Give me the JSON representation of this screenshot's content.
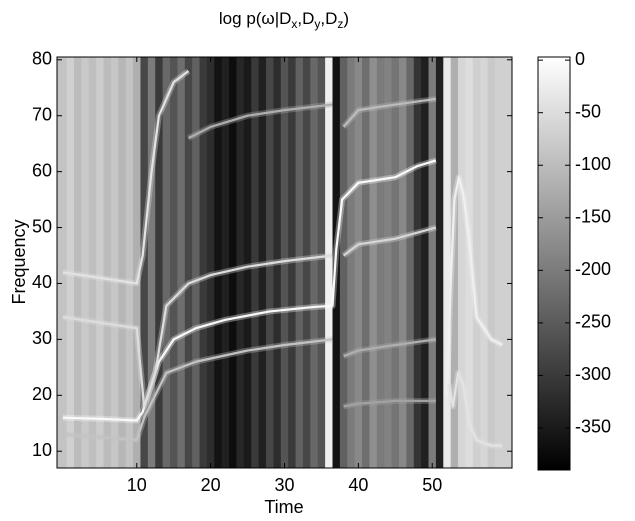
{
  "chart_data": {
    "type": "heatmap",
    "title": [
      {
        "text": "log p(ω|D"
      },
      {
        "text": "x",
        "sub": true
      },
      {
        "text": ",D"
      },
      {
        "text": "y",
        "sub": true
      },
      {
        "text": ",D"
      },
      {
        "text": "z",
        "sub": true
      },
      {
        "text": ")"
      }
    ],
    "x_label": "Time",
    "y_label": "Frequency",
    "xlim": [
      -0.8,
      60.8
    ],
    "ylim": [
      7,
      80.5
    ],
    "xticks": [
      10,
      20,
      30,
      40,
      50
    ],
    "yticks": [
      10,
      20,
      30,
      40,
      50,
      60,
      70,
      80
    ],
    "clim": [
      -390,
      3
    ],
    "cticks": [
      0,
      -50,
      -100,
      -150,
      -200,
      -250,
      -300,
      -350
    ],
    "columns": {
      "x": [
        0,
        1,
        2,
        3,
        4,
        5,
        6,
        7,
        8,
        9,
        10,
        11,
        12,
        13,
        14,
        15,
        16,
        17,
        18,
        19,
        20,
        21,
        22,
        23,
        24,
        25,
        26,
        27,
        28,
        29,
        30,
        31,
        32,
        33,
        34,
        35,
        36,
        37,
        38,
        39,
        40,
        41,
        42,
        43,
        44,
        45,
        46,
        47,
        48,
        49,
        50,
        51,
        52,
        53,
        54,
        55,
        56,
        57,
        58,
        59
      ],
      "values": [
        -90,
        -70,
        -100,
        -80,
        -95,
        -75,
        -100,
        -85,
        -110,
        -90,
        -120,
        -280,
        -200,
        -300,
        -230,
        -260,
        -220,
        -280,
        -240,
        -300,
        -320,
        -360,
        -340,
        -370,
        -330,
        -350,
        -300,
        -340,
        -280,
        -320,
        -260,
        -300,
        -240,
        -280,
        -230,
        -260,
        -20,
        -360,
        -240,
        -200,
        -180,
        -220,
        -170,
        -200,
        -190,
        -210,
        -180,
        -230,
        -310,
        -340,
        -200,
        -340,
        -30,
        -120,
        -60,
        -50,
        -70,
        -60,
        -80,
        -70
      ]
    },
    "series": [
      {
        "level": -5,
        "x": [
          0,
          5,
          10,
          10.8,
          12,
          13,
          15,
          18,
          22,
          28,
          34,
          36.5,
          37,
          37.8,
          40,
          45,
          48,
          50.5
        ],
        "values": [
          16,
          15.8,
          15.5,
          17,
          22,
          26,
          30,
          32,
          33.5,
          35,
          35.8,
          36,
          46,
          55,
          58,
          59,
          61,
          62
        ]
      },
      {
        "level": -40,
        "x": [
          0,
          5,
          10,
          10.8,
          12,
          13,
          15,
          17
        ],
        "values": [
          42,
          41,
          40,
          45,
          60,
          70,
          76,
          78
        ]
      },
      {
        "level": -50,
        "x": [
          0,
          5,
          10,
          11,
          12.5,
          14,
          17,
          20,
          25,
          30,
          36.5
        ],
        "values": [
          34,
          33,
          32,
          18,
          24,
          36,
          40,
          41.5,
          43,
          44,
          45
        ]
      },
      {
        "level": -90,
        "x": [
          0,
          5,
          10,
          11,
          12.5,
          14,
          18,
          25,
          30,
          36.5
        ],
        "values": [
          13,
          12.5,
          12,
          16,
          20,
          24,
          26,
          28,
          29,
          30
        ]
      },
      {
        "level": -120,
        "x": [
          17,
          20,
          25,
          30,
          36.5
        ],
        "values": [
          66,
          68,
          70,
          71,
          72
        ]
      },
      {
        "level": -60,
        "x": [
          38,
          40,
          45,
          50.5
        ],
        "values": [
          45,
          47,
          48,
          50
        ]
      },
      {
        "level": -100,
        "x": [
          38,
          40,
          45,
          50.5
        ],
        "values": [
          68,
          71,
          72,
          73
        ]
      },
      {
        "level": -120,
        "x": [
          38,
          40,
          45,
          50.5
        ],
        "values": [
          27,
          28,
          29,
          30
        ]
      },
      {
        "level": -140,
        "x": [
          38,
          40,
          45,
          50.5
        ],
        "values": [
          18,
          18.5,
          19,
          19
        ]
      },
      {
        "level": -20,
        "x": [
          52,
          52.5,
          53,
          53.6,
          54.2,
          55,
          56,
          58,
          59.5
        ],
        "values": [
          20,
          40,
          55,
          59,
          56,
          48,
          34,
          30,
          29
        ]
      },
      {
        "level": -40,
        "x": [
          52.3,
          52.8,
          53.5,
          54.2,
          55,
          56,
          58,
          59.5
        ],
        "values": [
          22,
          18,
          24,
          22,
          15,
          12,
          11,
          11
        ]
      }
    ]
  }
}
